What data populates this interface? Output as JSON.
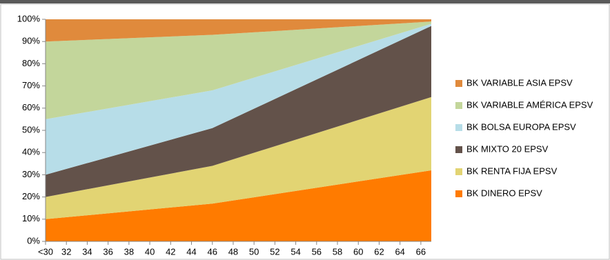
{
  "chart_data": {
    "type": "area",
    "stacked": true,
    "x": [
      30,
      46,
      67
    ],
    "xlim": [
      30,
      67
    ],
    "xticks": [
      {
        "value": 30,
        "label": "<30"
      },
      32,
      34,
      36,
      38,
      40,
      42,
      44,
      46,
      48,
      50,
      52,
      54,
      56,
      58,
      60,
      62,
      64,
      66
    ],
    "ylim": [
      0,
      100
    ],
    "yticks": [
      {
        "value": 0,
        "label": "0%"
      },
      {
        "value": 10,
        "label": "10%"
      },
      {
        "value": 20,
        "label": "20%"
      },
      {
        "value": 30,
        "label": "30%"
      },
      {
        "value": 40,
        "label": "40%"
      },
      {
        "value": 50,
        "label": "50%"
      },
      {
        "value": 60,
        "label": "60%"
      },
      {
        "value": 70,
        "label": "70%"
      },
      {
        "value": 80,
        "label": "80%"
      },
      {
        "value": 90,
        "label": "90%"
      },
      {
        "value": 100,
        "label": "100%"
      }
    ],
    "legend": "right",
    "series": [
      {
        "name": "BK DINERO EPSV",
        "color": "#ff7b00",
        "values": [
          10,
          17,
          32
        ]
      },
      {
        "name": "BK RENTA FIJA EPSV",
        "color": "#e2d473",
        "values": [
          10,
          17,
          33
        ]
      },
      {
        "name": "BK MIXTO 20 EPSV",
        "color": "#63524a",
        "values": [
          10,
          17,
          32
        ]
      },
      {
        "name": "BK BOLSA EUROPA EPSV",
        "color": "#b7dde8",
        "values": [
          25,
          17,
          1
        ]
      },
      {
        "name": "BK VARIABLE AMÉRICA EPSV",
        "color": "#c3d69b",
        "values": [
          35,
          25,
          1
        ]
      },
      {
        "name": "BK VARIABLE ASIA EPSV",
        "color": "#e08a3c",
        "values": [
          10,
          7,
          1
        ]
      }
    ]
  }
}
